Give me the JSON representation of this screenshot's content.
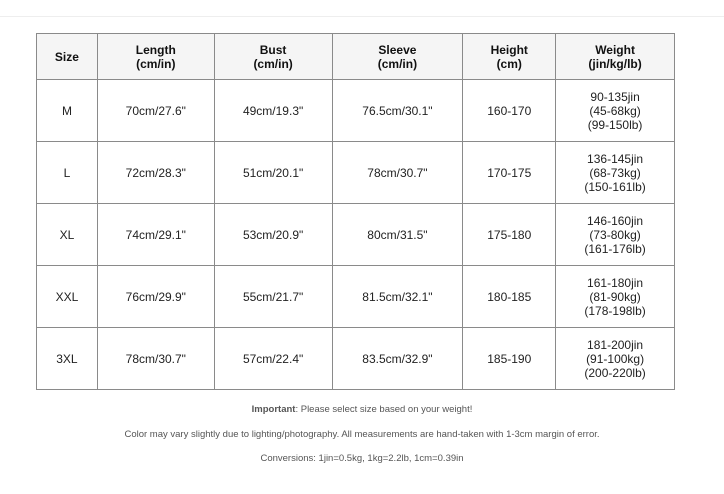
{
  "headers": [
    [
      "Size",
      ""
    ],
    [
      "Length",
      "(cm/in)"
    ],
    [
      "Bust",
      "(cm/in)"
    ],
    [
      "Sleeve",
      "(cm/in)"
    ],
    [
      "Height",
      "(cm)"
    ],
    [
      "Weight",
      "(jin/kg/lb)"
    ]
  ],
  "rows": [
    {
      "size": "M",
      "length": "70cm/27.6\"",
      "bust": "49cm/19.3\"",
      "sleeve": "76.5cm/30.1\"",
      "height": "160-170",
      "weight": [
        "90-135jin",
        "(45-68kg)",
        "(99-150lb)"
      ]
    },
    {
      "size": "L",
      "length": "72cm/28.3\"",
      "bust": "51cm/20.1\"",
      "sleeve": "78cm/30.7\"",
      "height": "170-175",
      "weight": [
        "136-145jin",
        "(68-73kg)",
        "(150-161lb)"
      ]
    },
    {
      "size": "XL",
      "length": "74cm/29.1\"",
      "bust": "53cm/20.9\"",
      "sleeve": "80cm/31.5\"",
      "height": "175-180",
      "weight": [
        "146-160jin",
        "(73-80kg)",
        "(161-176lb)"
      ]
    },
    {
      "size": "XXL",
      "length": "76cm/29.9\"",
      "bust": "55cm/21.7\"",
      "sleeve": "81.5cm/32.1\"",
      "height": "180-185",
      "weight": [
        "161-180jin",
        "(81-90kg)",
        "(178-198lb)"
      ]
    },
    {
      "size": "3XL",
      "length": "78cm/30.7\"",
      "bust": "57cm/22.4\"",
      "sleeve": "83.5cm/32.9\"",
      "height": "185-190",
      "weight": [
        "181-200jin",
        "(91-100kg)",
        "(200-220lb)"
      ]
    }
  ],
  "notes": {
    "important_label": "Important",
    "important_text": ": Please select size based on your weight!",
    "color_note": "Color may vary slightly due to lighting/photography. All measurements are hand-taken with 1-3cm margin of error.",
    "conversions": "Conversions: 1jin=0.5kg, 1kg=2.2lb, 1cm=0.39in"
  }
}
